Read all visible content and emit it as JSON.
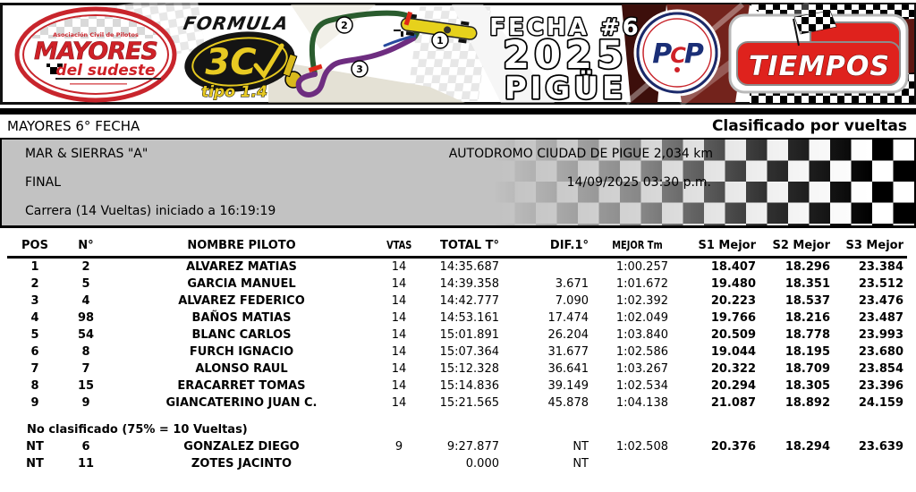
{
  "banner": {
    "mayores": {
      "association": "Asociación Civil de Pilotos",
      "name": "MAYORES",
      "subtitle": "del sudeste"
    },
    "formula": {
      "title": "FORMULA",
      "model": "3C",
      "tipo": "tipo 1.4"
    },
    "track_sectors": {
      "s1": "1",
      "s2": "2",
      "s3": "3"
    },
    "event": {
      "line1": "FECHA #6",
      "line2": "2025",
      "line3": "PIGÜE"
    },
    "pcp": {
      "p1": "P",
      "c": "C",
      "p2": "P"
    },
    "tiempos": "TIEMPOS"
  },
  "header": {
    "left": "MAYORES 6° FECHA",
    "right": "Clasificado por vueltas"
  },
  "info": {
    "category": "MAR & SIERRAS \"A\"",
    "circuit": "AUTODROMO CIUDAD DE PIGUE 2,034 km",
    "session": "FINAL",
    "datetime": "14/09/2025 03:30 p.m.",
    "race": "Carrera (14 Vueltas) iniciado a 16:19:19"
  },
  "table": {
    "columns": [
      "POS",
      "N°",
      "NOMBRE PILOTO",
      "VTAS",
      "TOTAL T°",
      "DIF.1°",
      "MEJOR Tm",
      "S1 Mejor",
      "S2 Mejor",
      "S3 Mejor"
    ],
    "rows": [
      [
        "1",
        "2",
        "ALVAREZ MATIAS",
        "14",
        "14:35.687",
        "",
        "1:00.257",
        "18.407",
        "18.296",
        "23.384"
      ],
      [
        "2",
        "5",
        "GARCIA MANUEL",
        "14",
        "14:39.358",
        "3.671",
        "1:01.672",
        "19.480",
        "18.351",
        "23.512"
      ],
      [
        "3",
        "4",
        "ALVAREZ FEDERICO",
        "14",
        "14:42.777",
        "7.090",
        "1:02.392",
        "20.223",
        "18.537",
        "23.476"
      ],
      [
        "4",
        "98",
        "BAÑOS MATIAS",
        "14",
        "14:53.161",
        "17.474",
        "1:02.049",
        "19.766",
        "18.216",
        "23.487"
      ],
      [
        "5",
        "54",
        "BLANC CARLOS",
        "14",
        "15:01.891",
        "26.204",
        "1:03.840",
        "20.509",
        "18.778",
        "23.993"
      ],
      [
        "6",
        "8",
        "FURCH IGNACIO",
        "14",
        "15:07.364",
        "31.677",
        "1:02.586",
        "19.044",
        "18.195",
        "23.680"
      ],
      [
        "7",
        "7",
        "ALONSO RAUL",
        "14",
        "15:12.328",
        "36.641",
        "1:03.267",
        "20.322",
        "18.709",
        "23.854"
      ],
      [
        "8",
        "15",
        "ERACARRET TOMAS",
        "14",
        "15:14.836",
        "39.149",
        "1:02.534",
        "20.294",
        "18.305",
        "23.396"
      ],
      [
        "9",
        "9",
        "GIANCATERINO JUAN C.",
        "14",
        "15:21.565",
        "45.878",
        "1:04.138",
        "21.087",
        "18.892",
        "24.159"
      ]
    ],
    "not_classified_label": "No clasificado (75% = 10 Vueltas)",
    "nt_rows": [
      [
        "NT",
        "6",
        "GONZALEZ DIEGO",
        "9",
        "9:27.877",
        "NT",
        "1:02.508",
        "20.376",
        "18.294",
        "23.639"
      ],
      [
        "NT",
        "11",
        "ZOTES JACINTO",
        "",
        "0.000",
        "NT",
        "",
        "",
        "",
        ""
      ]
    ]
  }
}
